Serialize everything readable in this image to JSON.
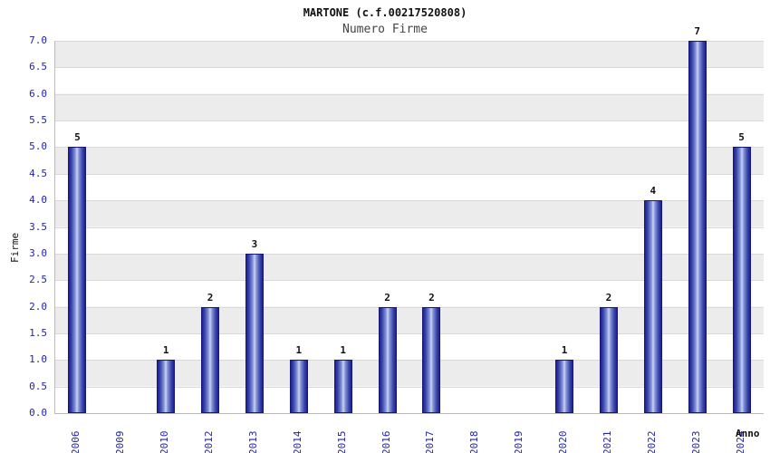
{
  "header": {
    "title": "MARTONE (c.f.00217520808)",
    "subtitle": "Numero Firme"
  },
  "chart_data": {
    "type": "bar",
    "title": "MARTONE (c.f.00217520808)",
    "subtitle": "Numero Firme",
    "categories": [
      "2006",
      "2009",
      "2010",
      "2012",
      "2013",
      "2014",
      "2015",
      "2016",
      "2017",
      "2018",
      "2019",
      "2020",
      "2021",
      "2022",
      "2023",
      "2024"
    ],
    "values": [
      5,
      0,
      1,
      2,
      3,
      1,
      1,
      2,
      2,
      0,
      0,
      1,
      2,
      4,
      7,
      5
    ],
    "xlabel": "Anno",
    "ylabel": "Firme",
    "ylim": [
      0,
      7
    ],
    "ytick_step": 0.5,
    "grid": true,
    "legend": "none",
    "colors": {
      "bar_edge": "#1e1e8f",
      "bar_center": "#cdd4f2",
      "tick_label": "#2323a8",
      "band_gray": "#ececec",
      "band_white": "#ffffff",
      "gridline": "#d9d9d9"
    }
  }
}
